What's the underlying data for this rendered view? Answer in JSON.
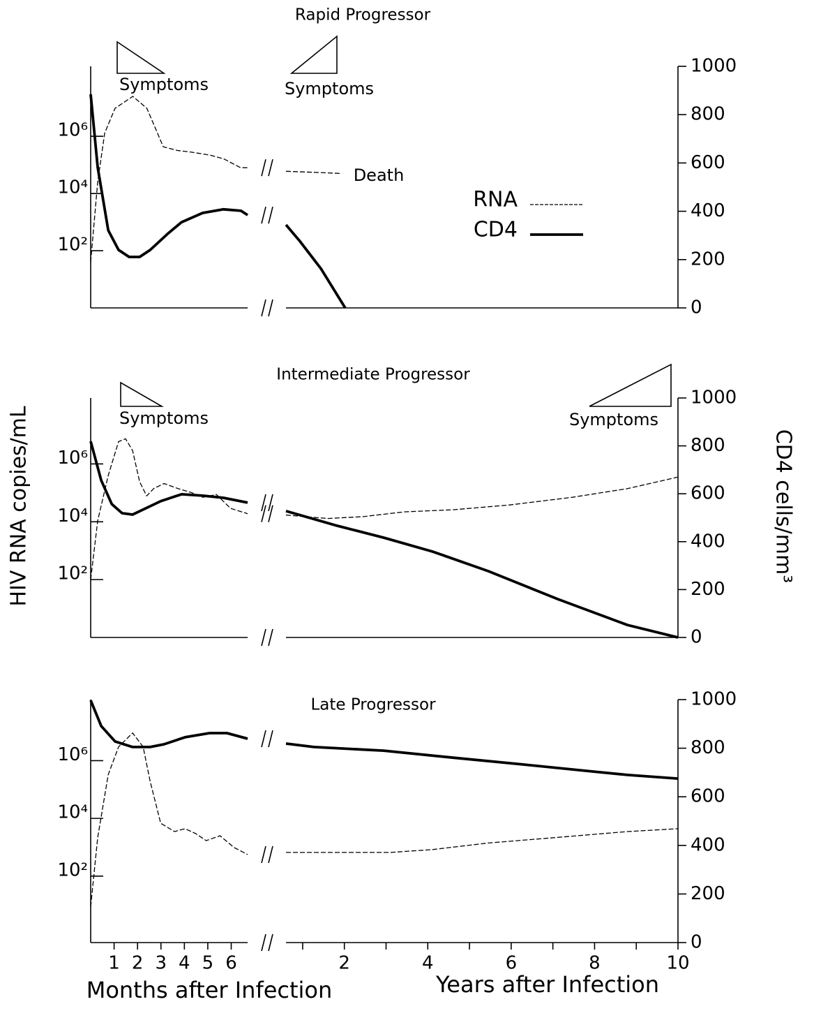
{
  "chart_data": {
    "type": "line",
    "log_y": true,
    "ylabel": "HIV RNA copies/mL",
    "y2label": "CD4 cells/mm³",
    "legend": [
      {
        "name": "RNA",
        "style": "dashed",
        "color": "#000000"
      },
      {
        "name": "CD4",
        "style": "solid",
        "color": "#000000"
      }
    ],
    "x_axes": {
      "months": {
        "label": "Months after Infection",
        "xlim": [
          0,
          6.7
        ],
        "xticks": [
          1,
          2,
          3,
          4,
          5,
          6
        ]
      },
      "years": {
        "label": "Years after Infection",
        "xlim": [
          0.6,
          10
        ],
        "xticks": [
          2,
          4,
          6,
          8,
          10
        ],
        "minor_xticks": [
          1,
          3,
          5,
          7,
          9
        ]
      }
    },
    "panels": [
      {
        "title": "Rapid Progressor",
        "ylim": [
          1,
          280000000
        ],
        "y2lim": [
          0,
          1000
        ],
        "yticks": [
          {
            "value": 100,
            "label": "10²"
          },
          {
            "value": 10000,
            "label": "10⁴"
          },
          {
            "value": 1000000,
            "label": "10⁶"
          }
        ],
        "y2ticks": [
          0,
          200,
          400,
          600,
          800,
          1000
        ],
        "annotations": [
          "Symptoms",
          "Symptoms",
          "Death"
        ],
        "series": [
          {
            "axis": "y",
            "months": {
              "x": [
                0,
                0.3,
                0.6,
                1.04,
                1.8,
                2.4,
                3.1,
                3.7,
                4.3,
                5.1,
                5.7,
                6.4,
                6.7
              ],
              "values": [
                40,
                26000,
                1300000,
                9500000,
                25000000,
                9500000,
                430000,
                320000,
                280000,
                220000,
                160000,
                80000,
                80000
              ]
            },
            "years": {
              "x": [
                0.6,
                1.27,
                1.94
              ],
              "values": [
                60000,
                55000,
                50000
              ]
            }
          },
          {
            "axis": "y2",
            "months": {
              "x": [
                0,
                0.3,
                0.75,
                1.19,
                1.64,
                2.09,
                2.54,
                3.28,
                3.88,
                4.78,
                5.67,
                6.42,
                6.7
              ],
              "values": [
                884,
                581,
                321,
                240,
                211,
                211,
                240,
                306,
                355,
                393,
                408,
                402,
                384
              ]
            },
            "years": {
              "x": [
                0.6,
                0.93,
                1.44,
                2.02
              ],
              "values": [
                344,
                277,
                162,
                0
              ]
            }
          }
        ]
      },
      {
        "title": "Intermediate Progressor",
        "ylim": [
          1,
          190000000
        ],
        "y2lim": [
          0,
          1000
        ],
        "yticks": [
          {
            "value": 100,
            "label": "10²"
          },
          {
            "value": 10000,
            "label": "10⁴"
          },
          {
            "value": 1000000,
            "label": "10⁶"
          }
        ],
        "y2ticks": [
          0,
          200,
          400,
          600,
          800,
          1000
        ],
        "annotations": [
          "Symptoms",
          "Symptoms"
        ],
        "series": [
          {
            "axis": "y",
            "months": {
              "x": [
                0,
                0.3,
                0.75,
                1.19,
                1.49,
                1.79,
                2.09,
                2.39,
                2.69,
                3.13,
                3.73,
                4.33,
                4.78,
                5.37,
                5.97,
                6.7
              ],
              "values": [
                100,
                11000,
                400000,
                5900000,
                7400000,
                2900000,
                240000,
                78000,
                140000,
                210000,
                140000,
                100000,
                70000,
                87000,
                29000,
                19000
              ]
            },
            "years": {
              "x": [
                0.6,
                1.6,
                2.44,
                3.44,
                4.61,
                5.95,
                7.46,
                8.79,
                10
              ],
              "values": [
                17000,
                13000,
                15000,
                22000,
                26000,
                38000,
                70000,
                140000,
                350000
              ]
            }
          },
          {
            "axis": "y2",
            "months": {
              "x": [
                0,
                0.45,
                0.9,
                1.34,
                1.79,
                2.24,
                2.99,
                3.88,
                4.78,
                5.67,
                6.7
              ],
              "values": [
                819,
                656,
                557,
                519,
                513,
                534,
                569,
                598,
                592,
                583,
                563
              ]
            },
            "years": {
              "x": [
                0.6,
                1.77,
                2.94,
                4.11,
                5.45,
                7.12,
                8.79,
                10
              ],
              "values": [
                528,
                469,
                417,
                359,
                277,
                160,
                52,
                0
              ]
            }
          }
        ]
      },
      {
        "title": "Late Progressor",
        "ylim": [
          0.5,
          130000000
        ],
        "y2lim": [
          0,
          1000
        ],
        "yticks": [
          {
            "value": 100,
            "label": "10²"
          },
          {
            "value": 10000,
            "label": "10⁴"
          },
          {
            "value": 1000000,
            "label": "10⁶"
          }
        ],
        "y2ticks": [
          0,
          200,
          400,
          600,
          800,
          1000
        ],
        "series": [
          {
            "axis": "y",
            "months": {
              "x": [
                0,
                0.3,
                0.75,
                1.19,
                1.79,
                2.24,
                2.54,
                2.99,
                3.58,
                4.03,
                4.48,
                4.93,
                5.52,
                6.12,
                6.7
              ],
              "values": [
                8.7,
                2200,
                330000,
                3000000,
                9100000,
                3000000,
                190000,
                6800,
                3500,
                4400,
                3000,
                1700,
                2500,
                980,
                560
              ]
            },
            "years": {
              "x": [
                0.6,
                1.77,
                3.1,
                4.11,
                5.45,
                7.12,
                8.79,
                10
              ],
              "values": [
                660,
                660,
                660,
                830,
                1400,
                2200,
                3500,
                4400
              ]
            }
          },
          {
            "axis": "y2",
            "months": {
              "x": [
                0,
                0.45,
                1.04,
                1.79,
                2.54,
                3.13,
                4.03,
                5.07,
                5.82,
                6.7
              ],
              "values": [
                997,
                891,
                828,
                805,
                805,
                816,
                845,
                862,
                862,
                839
              ]
            },
            "years": {
              "x": [
                0.6,
                1.27,
                2.94,
                4.61,
                6.28,
                7.96,
                8.79,
                10
              ],
              "values": [
                819,
                805,
                790,
                761,
                733,
                704,
                690,
                675
              ]
            }
          }
        ]
      }
    ]
  }
}
